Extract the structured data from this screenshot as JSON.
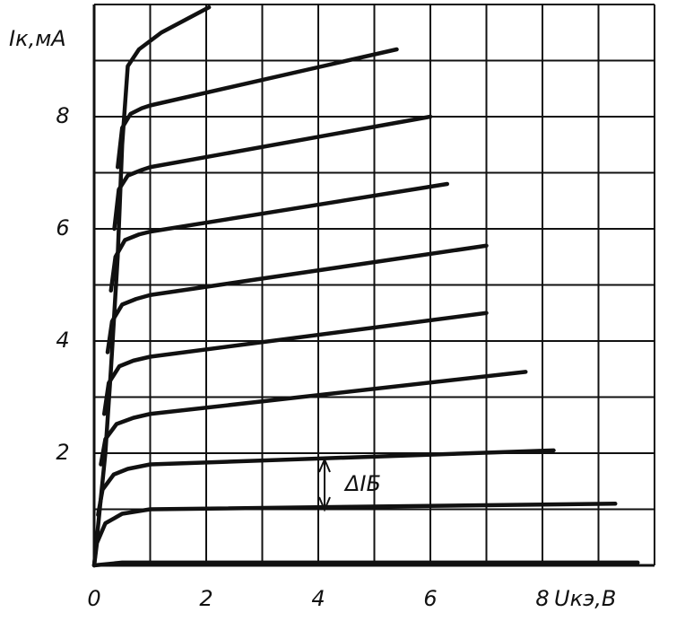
{
  "chart_data": {
    "type": "line",
    "y_label": "Iк,мА",
    "x_label": "Uкэ,В",
    "annotation": "ΔIБ",
    "xlim": [
      0,
      10
    ],
    "ylim": [
      0,
      10
    ],
    "xticks": [
      0,
      2,
      4,
      6,
      8
    ],
    "yticks": [
      2,
      4,
      6,
      8
    ],
    "xgrid": [
      1,
      2,
      3,
      4,
      5,
      6,
      7,
      8,
      9,
      10
    ],
    "ygrid": [
      1,
      2,
      3,
      4,
      5,
      6,
      7,
      8,
      9,
      10
    ],
    "grid": true,
    "color": "#111111",
    "series": [
      {
        "x": [
          0,
          0.5,
          9.7
        ],
        "values": [
          0,
          0.05,
          0.05
        ]
      },
      {
        "x": [
          0,
          0.05,
          0.2,
          0.5,
          1,
          9.3
        ],
        "values": [
          0,
          0.4,
          0.75,
          0.92,
          1.0,
          1.1
        ]
      },
      {
        "x": [
          0.07,
          0.15,
          0.35,
          0.6,
          1,
          8.2
        ],
        "values": [
          0.9,
          1.35,
          1.62,
          1.72,
          1.8,
          2.05
        ]
      },
      {
        "x": [
          0.12,
          0.2,
          0.4,
          0.7,
          1,
          7.7
        ],
        "values": [
          1.8,
          2.25,
          2.52,
          2.63,
          2.7,
          3.45
        ]
      },
      {
        "x": [
          0.18,
          0.26,
          0.45,
          0.7,
          1,
          7.0
        ],
        "values": [
          2.7,
          3.25,
          3.55,
          3.65,
          3.72,
          4.5
        ]
      },
      {
        "x": [
          0.24,
          0.32,
          0.5,
          0.75,
          1,
          7.0
        ],
        "values": [
          3.8,
          4.35,
          4.65,
          4.75,
          4.82,
          5.7
        ]
      },
      {
        "x": [
          0.3,
          0.38,
          0.55,
          0.8,
          1,
          6.3
        ],
        "values": [
          4.9,
          5.5,
          5.8,
          5.9,
          5.95,
          6.8
        ]
      },
      {
        "x": [
          0.36,
          0.44,
          0.6,
          0.85,
          1,
          6.0
        ],
        "values": [
          6.0,
          6.7,
          6.95,
          7.05,
          7.1,
          8.0
        ]
      },
      {
        "x": [
          0.42,
          0.5,
          0.65,
          0.85,
          1,
          5.4
        ],
        "values": [
          7.1,
          7.8,
          8.05,
          8.15,
          8.2,
          9.2
        ]
      },
      {
        "x": [
          0,
          0.1,
          0.2,
          0.3,
          0.42,
          0.5,
          0.6,
          0.8,
          1.2,
          2.05
        ],
        "values": [
          0,
          1,
          2,
          3.5,
          5.5,
          7.5,
          8.9,
          9.2,
          9.5,
          9.95
        ]
      }
    ]
  }
}
